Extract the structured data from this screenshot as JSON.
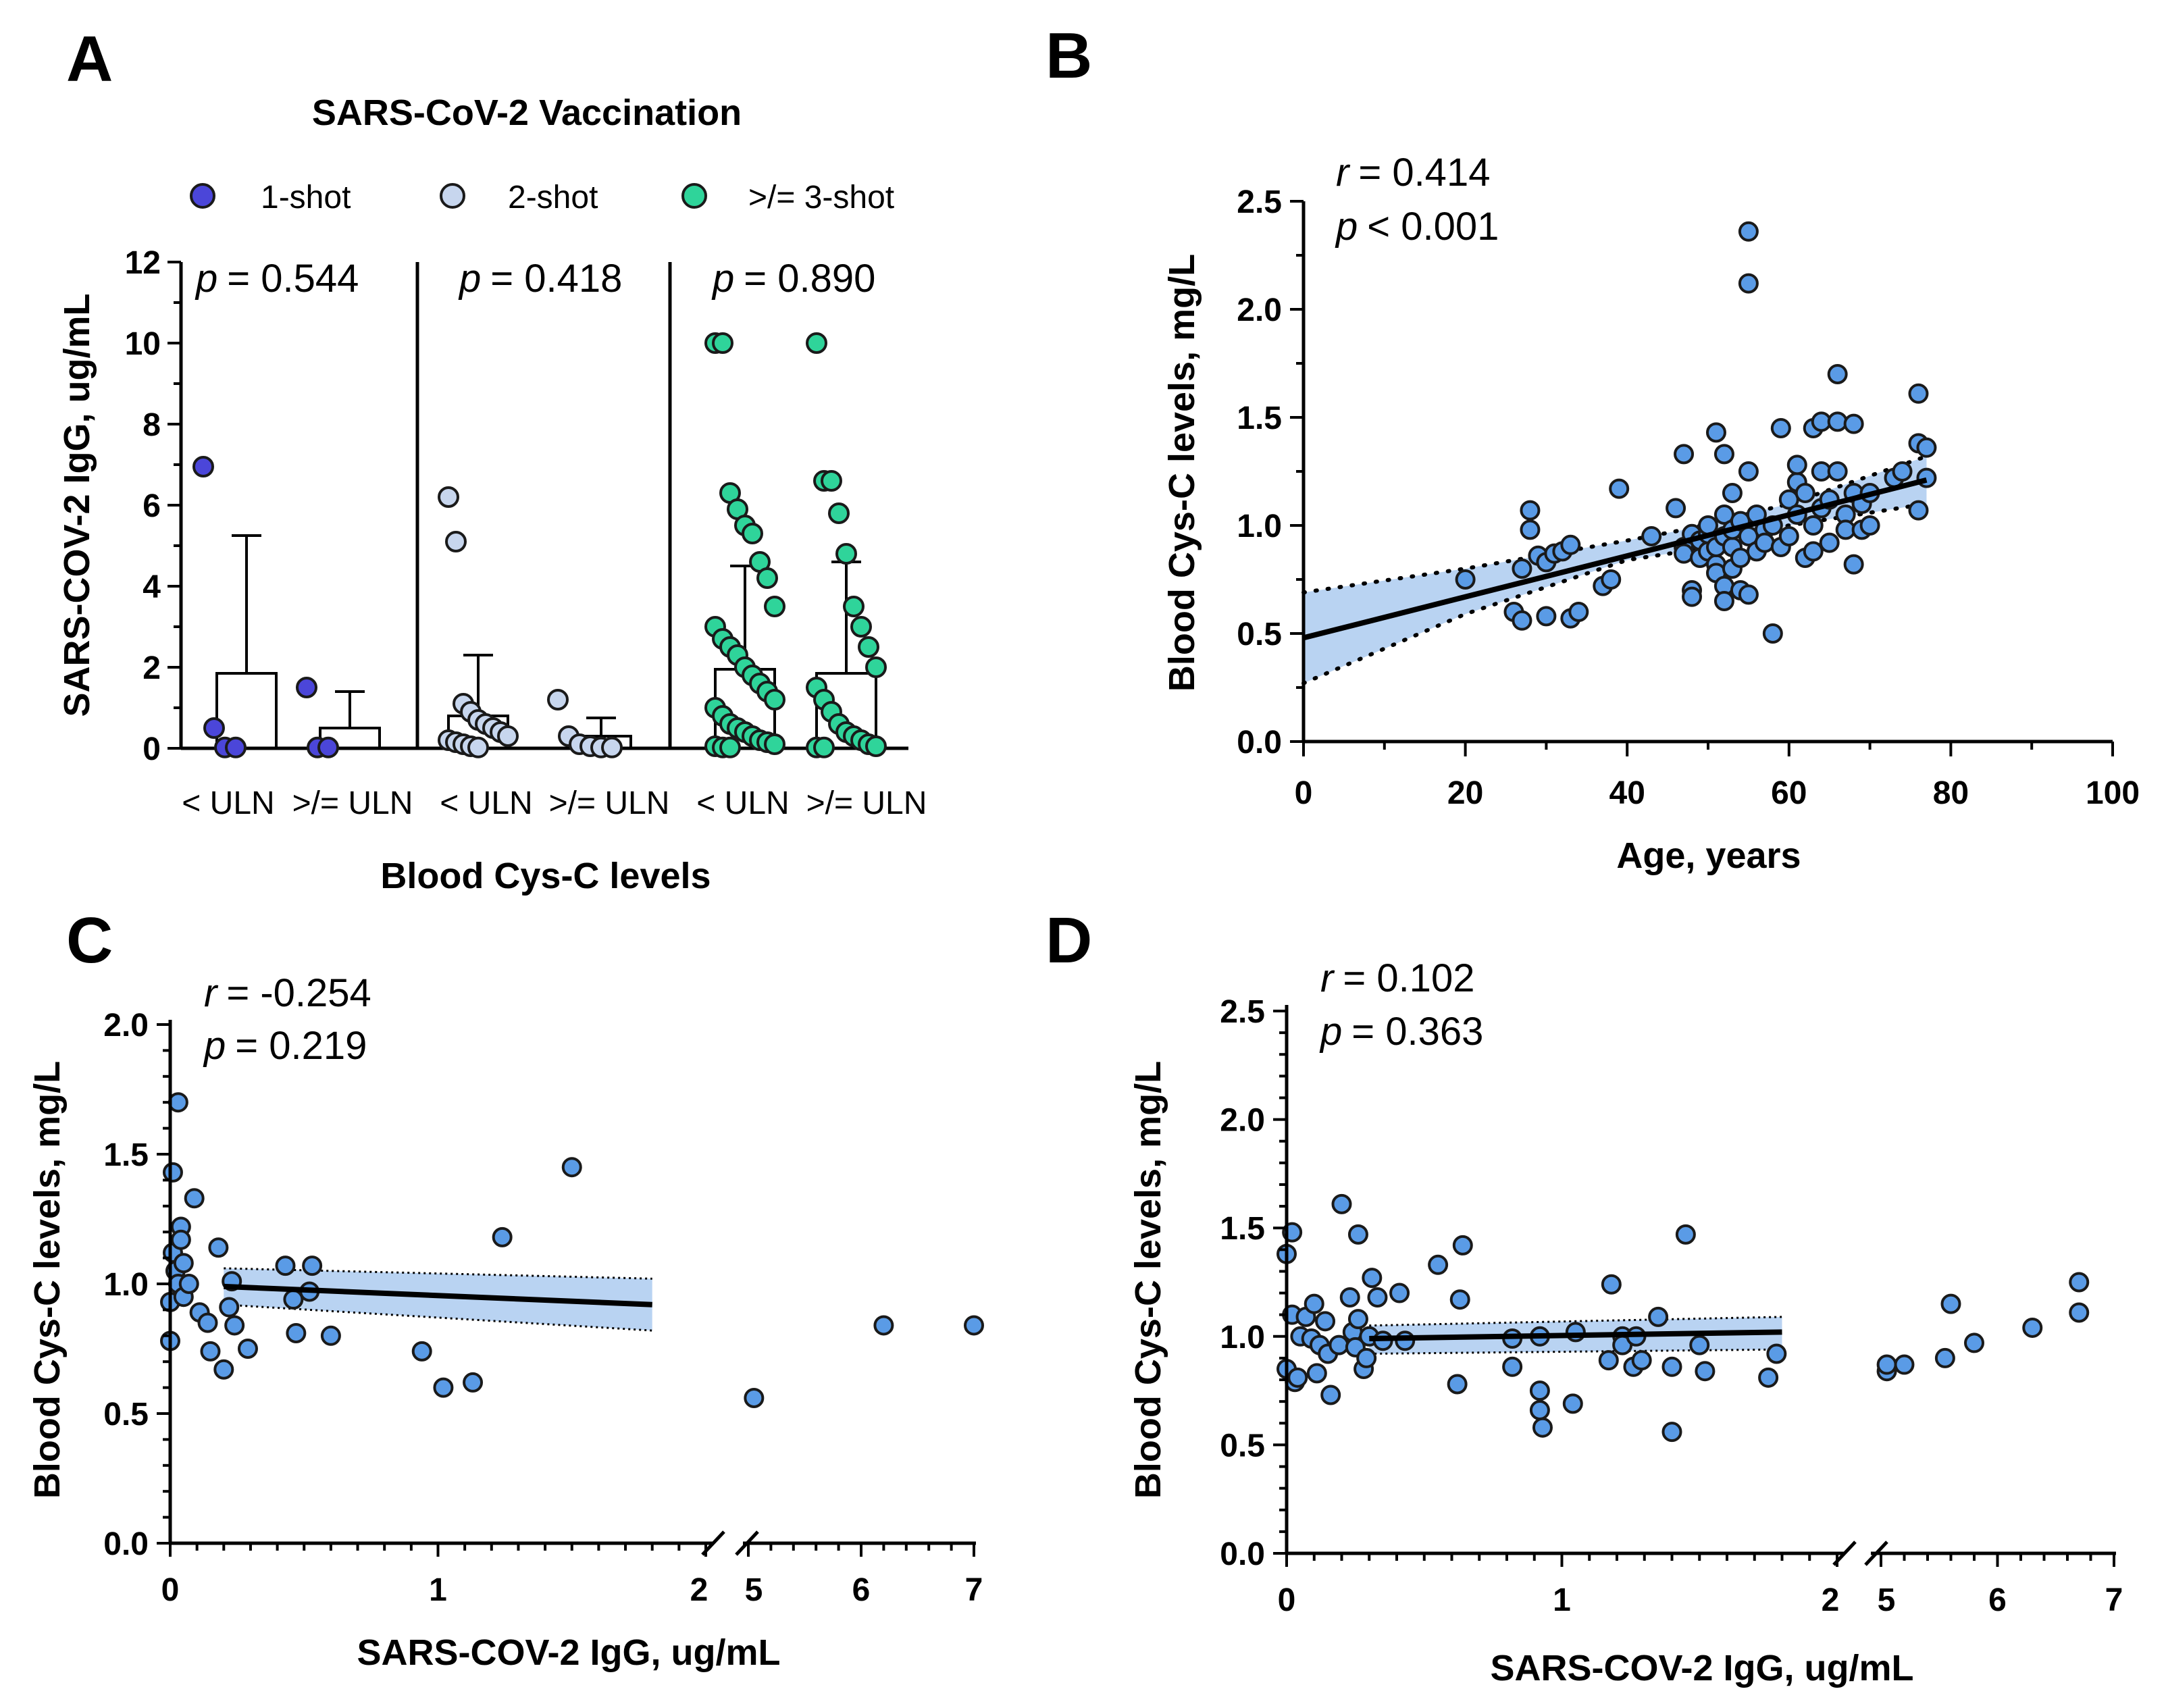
{
  "panels": {
    "A": {
      "letter": "A",
      "title": "SARS-CoV-2 Vaccination",
      "legend": [
        {
          "label": "1-shot",
          "color": "#4b46d9"
        },
        {
          "label": "2-shot",
          "color": "#c7d6ee"
        },
        {
          "label": ">/= 3-shot",
          "color": "#2fd49a"
        }
      ],
      "p_values": [
        "= 0.544",
        "= 0.418",
        "= 0.890"
      ],
      "p_symbol": "p",
      "xlabel": "Blood Cys-C levels",
      "ylabel": "SARS-COV-2 IgG, ug/mL",
      "category_labels": [
        "< ULN",
        ">/= ULN",
        "< ULN",
        ">/= ULN",
        "< ULN",
        ">/= ULN"
      ],
      "y_ticks": [
        "0",
        "2",
        "4",
        "6",
        "8",
        "10",
        "12"
      ]
    },
    "B": {
      "letter": "B",
      "r_symbol": "r",
      "r_text": "= 0.414",
      "p_symbol": "p",
      "p_text": "< 0.001",
      "xlabel": "Age, years",
      "ylabel": "Blood Cys-C levels, mg/L",
      "x_ticks": [
        "0",
        "20",
        "40",
        "60",
        "80",
        "100"
      ],
      "y_ticks": [
        "0.0",
        "0.5",
        "1.0",
        "1.5",
        "2.0",
        "2.5"
      ]
    },
    "C": {
      "letter": "C",
      "r_symbol": "r",
      "r_text": "= -0.254",
      "p_symbol": "p",
      "p_text": "= 0.219",
      "xlabel": "SARS-COV-2 IgG, ug/mL",
      "ylabel": "Blood Cys-C levels, mg/L",
      "x_ticks": [
        "0",
        "1",
        "2",
        "5",
        "6",
        "7"
      ],
      "y_ticks": [
        "0.0",
        "0.5",
        "1.0",
        "1.5",
        "2.0"
      ]
    },
    "D": {
      "letter": "D",
      "r_symbol": "r",
      "r_text": "= 0.102",
      "p_symbol": "p",
      "p_text": "= 0.363",
      "xlabel": "SARS-COV-2 IgG, ug/mL",
      "ylabel": "Blood Cys-C levels, mg/L",
      "x_ticks": [
        "0",
        "1",
        "2",
        "5",
        "6",
        "7"
      ],
      "y_ticks": [
        "0.0",
        "0.5",
        "1.0",
        "1.5",
        "2.0",
        "2.5"
      ]
    }
  },
  "colors": {
    "point": "#5a9be6",
    "ci_band": "#b9d3f2",
    "line": "#000000"
  },
  "chart_data": [
    {
      "panel": "A",
      "type": "bar",
      "title": "SARS-CoV-2 Vaccination",
      "xlabel": "Blood Cys-C levels",
      "ylabel": "SARS-COV-2 IgG, ug/mL",
      "ylim": [
        0,
        12
      ],
      "categories": [
        "< ULN",
        ">/= ULN",
        "< ULN",
        ">/= ULN",
        "< ULN",
        ">/= ULN"
      ],
      "groups": [
        {
          "name": "1-shot",
          "p_value": 0.544,
          "color": "#4b46d9",
          "bars": [
            {
              "category": "< ULN",
              "mean": 1.85,
              "upper_error": 5.25,
              "points": [
                6.95,
                0.5,
                0.02,
                0.02
              ]
            },
            {
              "category": ">/= ULN",
              "mean": 0.5,
              "upper_error": 1.4,
              "points": [
                1.5,
                0.02,
                0.02
              ]
            }
          ]
        },
        {
          "name": "2-shot",
          "p_value": 0.418,
          "color": "#c7d6ee",
          "bars": [
            {
              "category": "< ULN",
              "mean": 0.8,
              "upper_error": 2.3,
              "points": [
                6.2,
                5.1,
                1.1,
                0.9,
                0.7,
                0.6,
                0.5,
                0.4,
                0.3,
                0.2,
                0.15,
                0.1,
                0.05,
                0.02
              ]
            },
            {
              "category": ">/= ULN",
              "mean": 0.3,
              "upper_error": 0.75,
              "points": [
                1.2,
                0.3,
                0.1,
                0.05,
                0.02,
                0.02
              ]
            }
          ]
        },
        {
          "name": ">/= 3-shot",
          "p_value": 0.89,
          "color": "#2fd49a",
          "bars": [
            {
              "category": "< ULN",
              "mean": 1.95,
              "upper_error": 4.5,
              "points": [
                10.0,
                10.0,
                6.3,
                5.9,
                5.5,
                5.3,
                4.6,
                4.2,
                3.5,
                3.0,
                2.7,
                2.5,
                2.3,
                2.0,
                1.8,
                1.6,
                1.4,
                1.2,
                1.0,
                0.8,
                0.6,
                0.5,
                0.4,
                0.3,
                0.2,
                0.15,
                0.1,
                0.05,
                0.02,
                0.02
              ]
            },
            {
              "category": ">/= ULN",
              "mean": 1.85,
              "upper_error": 4.6,
              "points": [
                10.0,
                6.6,
                6.6,
                5.8,
                4.8,
                3.5,
                3.0,
                2.5,
                2.0,
                1.5,
                1.2,
                0.9,
                0.6,
                0.4,
                0.3,
                0.2,
                0.1,
                0.05,
                0.02,
                0.02
              ]
            }
          ]
        }
      ]
    },
    {
      "panel": "B",
      "type": "scatter",
      "xlabel": "Age, years",
      "ylabel": "Blood Cys-C levels, mg/L",
      "xlim": [
        0,
        100
      ],
      "ylim": [
        0,
        2.5
      ],
      "r": 0.414,
      "p": "< 0.001",
      "fit": {
        "x": [
          0,
          77
        ],
        "y": [
          0.48,
          1.21
        ]
      },
      "ci_upper": {
        "x": [
          0,
          20,
          40,
          47,
          60,
          77
        ],
        "y": [
          0.69,
          0.8,
          0.93,
          0.98,
          1.1,
          1.32
        ]
      },
      "ci_lower": {
        "x": [
          0,
          20,
          40,
          47,
          60,
          77
        ],
        "y": [
          0.27,
          0.59,
          0.84,
          0.88,
          1.0,
          1.1
        ]
      },
      "points": [
        [
          20,
          0.75
        ],
        [
          26,
          0.6
        ],
        [
          27,
          0.8
        ],
        [
          27,
          0.56
        ],
        [
          28,
          1.07
        ],
        [
          28,
          0.98
        ],
        [
          29,
          0.86
        ],
        [
          30,
          0.58
        ],
        [
          30,
          0.83
        ],
        [
          31,
          0.87
        ],
        [
          32,
          0.88
        ],
        [
          33,
          0.91
        ],
        [
          33,
          0.57
        ],
        [
          34,
          0.6
        ],
        [
          37,
          0.72
        ],
        [
          38,
          0.75
        ],
        [
          39,
          1.17
        ],
        [
          43,
          0.95
        ],
        [
          46,
          1.08
        ],
        [
          47,
          1.33
        ],
        [
          47,
          0.9
        ],
        [
          47,
          0.87
        ],
        [
          48,
          0.7
        ],
        [
          48,
          0.67
        ],
        [
          48,
          0.96
        ],
        [
          49,
          0.85
        ],
        [
          49,
          0.93
        ],
        [
          50,
          0.88
        ],
        [
          50,
          0.96
        ],
        [
          50,
          1.0
        ],
        [
          51,
          0.82
        ],
        [
          51,
          0.9
        ],
        [
          51,
          0.78
        ],
        [
          51,
          1.43
        ],
        [
          52,
          1.33
        ],
        [
          52,
          1.05
        ],
        [
          52,
          0.95
        ],
        [
          52,
          0.72
        ],
        [
          52,
          0.65
        ],
        [
          53,
          0.9
        ],
        [
          53,
          1.15
        ],
        [
          53,
          0.98
        ],
        [
          53,
          0.8
        ],
        [
          54,
          1.02
        ],
        [
          54,
          0.85
        ],
        [
          54,
          0.7
        ],
        [
          55,
          2.36
        ],
        [
          55,
          2.12
        ],
        [
          55,
          1.25
        ],
        [
          55,
          0.95
        ],
        [
          55,
          0.68
        ],
        [
          56,
          1.05
        ],
        [
          56,
          0.88
        ],
        [
          57,
          0.98
        ],
        [
          57,
          0.92
        ],
        [
          58,
          0.5
        ],
        [
          58,
          1.0
        ],
        [
          59,
          1.45
        ],
        [
          59,
          0.9
        ],
        [
          60,
          0.95
        ],
        [
          60,
          1.12
        ],
        [
          61,
          1.2
        ],
        [
          61,
          1.28
        ],
        [
          61,
          1.05
        ],
        [
          62,
          0.85
        ],
        [
          62,
          1.15
        ],
        [
          63,
          1.45
        ],
        [
          63,
          1.0
        ],
        [
          63,
          0.88
        ],
        [
          64,
          1.48
        ],
        [
          64,
          1.25
        ],
        [
          64,
          1.08
        ],
        [
          65,
          1.12
        ],
        [
          65,
          0.92
        ],
        [
          66,
          1.7
        ],
        [
          66,
          1.48
        ],
        [
          66,
          1.25
        ],
        [
          67,
          1.05
        ],
        [
          67,
          0.98
        ],
        [
          68,
          1.47
        ],
        [
          68,
          1.15
        ],
        [
          68,
          0.82
        ],
        [
          69,
          1.1
        ],
        [
          69,
          0.98
        ],
        [
          70,
          1.0
        ],
        [
          70,
          1.15
        ],
        [
          73,
          1.22
        ],
        [
          74,
          1.25
        ],
        [
          76,
          1.61
        ],
        [
          76,
          1.38
        ],
        [
          76,
          1.07
        ],
        [
          77,
          1.36
        ],
        [
          77,
          1.22
        ]
      ]
    },
    {
      "panel": "C",
      "type": "scatter",
      "xlabel": "SARS-COV-2 IgG, ug/mL",
      "ylabel": "Blood Cys-C levels, mg/L",
      "x_axis_break": "between 2 and 5",
      "x_segments": [
        [
          0,
          2
        ],
        [
          5,
          7
        ]
      ],
      "ylim": [
        0,
        2.0
      ],
      "r": -0.254,
      "p": 0.219,
      "fit": {
        "x": [
          0.2,
          1.8
        ],
        "y": [
          0.99,
          0.92
        ]
      },
      "ci_upper": {
        "x": [
          0.2,
          1.8
        ],
        "y": [
          1.06,
          1.02
        ]
      },
      "ci_lower": {
        "x": [
          0.2,
          1.8
        ],
        "y": [
          0.92,
          0.82
        ]
      },
      "points": [
        [
          0.0,
          0.78
        ],
        [
          0.0,
          0.93
        ],
        [
          0.01,
          1.12
        ],
        [
          0.01,
          1.43
        ],
        [
          0.02,
          1.05
        ],
        [
          0.03,
          1.7
        ],
        [
          0.03,
          1.0
        ],
        [
          0.04,
          1.22
        ],
        [
          0.04,
          1.17
        ],
        [
          0.05,
          0.95
        ],
        [
          0.05,
          1.08
        ],
        [
          0.07,
          1.0
        ],
        [
          0.09,
          1.33
        ],
        [
          0.11,
          0.89
        ],
        [
          0.14,
          0.85
        ],
        [
          0.15,
          0.74
        ],
        [
          0.18,
          1.14
        ],
        [
          0.2,
          0.67
        ],
        [
          0.22,
          0.91
        ],
        [
          0.23,
          1.01
        ],
        [
          0.24,
          0.84
        ],
        [
          0.29,
          0.75
        ],
        [
          0.43,
          1.07
        ],
        [
          0.46,
          0.94
        ],
        [
          0.47,
          0.81
        ],
        [
          0.52,
          0.97
        ],
        [
          0.53,
          1.07
        ],
        [
          0.6,
          0.8
        ],
        [
          0.94,
          0.74
        ],
        [
          1.02,
          0.6
        ],
        [
          1.13,
          0.62
        ],
        [
          1.24,
          1.18
        ],
        [
          1.5,
          1.45
        ],
        [
          5.05,
          0.56
        ],
        [
          6.2,
          0.84
        ],
        [
          7.0,
          0.84
        ]
      ]
    },
    {
      "panel": "D",
      "type": "scatter",
      "xlabel": "SARS-COV-2 IgG, ug/mL",
      "ylabel": "Blood Cys-C levels, mg/L",
      "x_axis_break": "between 2 and 5",
      "x_segments": [
        [
          0,
          2
        ],
        [
          5,
          7
        ]
      ],
      "ylim": [
        0,
        2.5
      ],
      "r": 0.102,
      "p": 0.363,
      "fit": {
        "x": [
          0.3,
          1.8
        ],
        "y": [
          0.99,
          1.02
        ]
      },
      "ci_upper": {
        "x": [
          0.3,
          1.8
        ],
        "y": [
          1.05,
          1.09
        ]
      },
      "ci_lower": {
        "x": [
          0.3,
          1.8
        ],
        "y": [
          0.92,
          0.94
        ]
      },
      "points": [
        [
          0.0,
          1.38
        ],
        [
          0.0,
          0.85
        ],
        [
          0.02,
          1.48
        ],
        [
          0.02,
          1.1
        ],
        [
          0.03,
          0.79
        ],
        [
          0.04,
          0.81
        ],
        [
          0.05,
          1.0
        ],
        [
          0.07,
          1.09
        ],
        [
          0.09,
          0.99
        ],
        [
          0.1,
          1.15
        ],
        [
          0.11,
          0.83
        ],
        [
          0.12,
          0.96
        ],
        [
          0.14,
          1.07
        ],
        [
          0.15,
          0.92
        ],
        [
          0.16,
          0.73
        ],
        [
          0.19,
          0.96
        ],
        [
          0.2,
          1.61
        ],
        [
          0.23,
          1.18
        ],
        [
          0.24,
          1.02
        ],
        [
          0.25,
          0.95
        ],
        [
          0.26,
          1.47
        ],
        [
          0.26,
          1.08
        ],
        [
          0.28,
          0.85
        ],
        [
          0.29,
          0.9
        ],
        [
          0.3,
          1.0
        ],
        [
          0.31,
          1.27
        ],
        [
          0.33,
          1.18
        ],
        [
          0.35,
          0.98
        ],
        [
          0.41,
          1.2
        ],
        [
          0.43,
          0.98
        ],
        [
          0.55,
          1.33
        ],
        [
          0.62,
          0.78
        ],
        [
          0.63,
          1.17
        ],
        [
          0.64,
          1.42
        ],
        [
          0.82,
          0.99
        ],
        [
          0.82,
          0.86
        ],
        [
          0.92,
          1.0
        ],
        [
          0.92,
          0.75
        ],
        [
          0.92,
          0.66
        ],
        [
          0.93,
          0.58
        ],
        [
          1.04,
          0.69
        ],
        [
          1.05,
          1.02
        ],
        [
          1.17,
          0.89
        ],
        [
          1.18,
          1.24
        ],
        [
          1.22,
          1.0
        ],
        [
          1.22,
          0.96
        ],
        [
          1.26,
          0.86
        ],
        [
          1.27,
          1.0
        ],
        [
          1.29,
          0.89
        ],
        [
          1.35,
          1.09
        ],
        [
          1.4,
          0.56
        ],
        [
          1.4,
          0.86
        ],
        [
          1.45,
          1.47
        ],
        [
          1.5,
          0.96
        ],
        [
          1.52,
          0.84
        ],
        [
          1.75,
          0.81
        ],
        [
          1.78,
          0.92
        ],
        [
          5.05,
          0.84
        ],
        [
          5.05,
          0.87
        ],
        [
          5.2,
          0.87
        ],
        [
          5.55,
          0.9
        ],
        [
          5.6,
          1.15
        ],
        [
          5.8,
          0.97
        ],
        [
          6.3,
          1.04
        ],
        [
          6.7,
          1.25
        ],
        [
          6.7,
          1.11
        ]
      ]
    }
  ]
}
